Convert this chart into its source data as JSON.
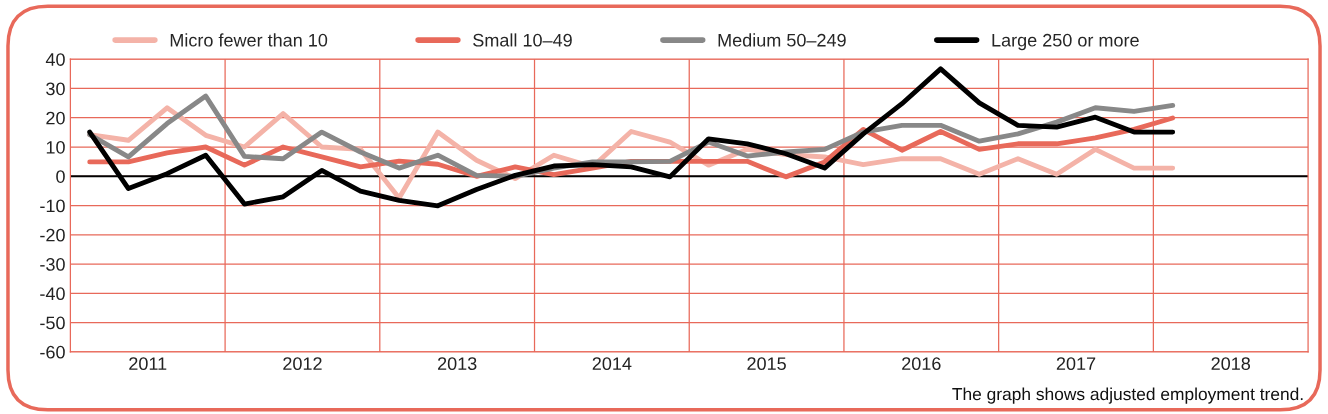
{
  "chart_data": {
    "type": "line",
    "x": [
      2011.125,
      2011.375,
      2011.625,
      2011.875,
      2012.125,
      2012.375,
      2012.625,
      2012.875,
      2013.125,
      2013.375,
      2013.625,
      2013.875,
      2014.125,
      2014.375,
      2014.625,
      2014.875,
      2015.125,
      2015.375,
      2015.625,
      2015.875,
      2016.125,
      2016.375,
      2016.625,
      2016.875,
      2017.125,
      2017.375,
      2017.625,
      2017.875,
      2018.125
    ],
    "series": [
      {
        "name": "Micro fewer than 10",
        "color": "#f4b3a8",
        "values": [
          14.2,
          12.3,
          23.4,
          14,
          10,
          21.4,
          10,
          9.2,
          -7.4,
          15.1,
          5.5,
          -0.8,
          7.2,
          3.2,
          15.3,
          11.7,
          3.8,
          9.2,
          7.4,
          6.6,
          4,
          6,
          6,
          0.7,
          6,
          0.7,
          9.2,
          2.8,
          2.8
        ]
      },
      {
        "name": "Small 10–49",
        "color": "#e8695a",
        "values": [
          4.9,
          4.9,
          8,
          10,
          3.8,
          10,
          6.6,
          3.2,
          5.2,
          4.1,
          0,
          3.2,
          0.6,
          2.8,
          5.1,
          5.1,
          5.1,
          5.1,
          -0.2,
          4.9,
          16,
          8.9,
          15.3,
          9.2,
          11.1,
          11.1,
          13.1,
          16,
          19.9
        ]
      },
      {
        "name": "Medium 50–249",
        "color": "#888888",
        "values": [
          14.2,
          6.6,
          18,
          27.4,
          6.8,
          6,
          15.1,
          8.3,
          2.8,
          7.2,
          0.3,
          0,
          2.8,
          4.9,
          4.9,
          5.1,
          11.7,
          6.9,
          8.3,
          9.2,
          15.1,
          17.4,
          17.4,
          12,
          14.5,
          18.5,
          23.4,
          22.2,
          24.2
        ]
      },
      {
        "name": "Large 250 or more",
        "color": "#000000",
        "values": [
          15.1,
          -4.2,
          0.9,
          7.2,
          -9.5,
          -7,
          2,
          -5.1,
          -8.2,
          -10.1,
          -4.5,
          0.3,
          3.5,
          4,
          3.2,
          -0.2,
          12.8,
          11.1,
          7.7,
          2.8,
          14.5,
          24.8,
          36.7,
          25.1,
          17.4,
          16.8,
          20.2,
          15.1,
          15.1
        ]
      }
    ],
    "xlim": [
      2011,
      2019
    ],
    "xticks": [
      {
        "value": 2011.5,
        "label": "2011"
      },
      {
        "value": 2012,
        "label": null
      },
      {
        "value": 2012.5,
        "label": "2012"
      },
      {
        "value": 2013,
        "label": null
      },
      {
        "value": 2013.5,
        "label": "2013"
      },
      {
        "value": 2014,
        "label": null
      },
      {
        "value": 2014.5,
        "label": "2014"
      },
      {
        "value": 2015,
        "label": null
      },
      {
        "value": 2015.5,
        "label": "2015"
      },
      {
        "value": 2016,
        "label": null
      },
      {
        "value": 2016.5,
        "label": "2016"
      },
      {
        "value": 2017,
        "label": null
      },
      {
        "value": 2017.5,
        "label": "2017"
      },
      {
        "value": 2018,
        "label": null
      },
      {
        "value": 2018.5,
        "label": "2018"
      }
    ],
    "ylim": [
      -60,
      40
    ],
    "yticks": [
      -60,
      -50,
      -40,
      -30,
      -20,
      -10,
      0,
      10,
      20,
      30,
      40
    ],
    "ref_lines": [
      {
        "axis": "y",
        "value": 0,
        "color": "#000000"
      }
    ],
    "annotations": [
      "The graph shows adjusted employment trend."
    ],
    "grid": true,
    "legend": "top",
    "marker": "none",
    "line_style": "solid"
  }
}
